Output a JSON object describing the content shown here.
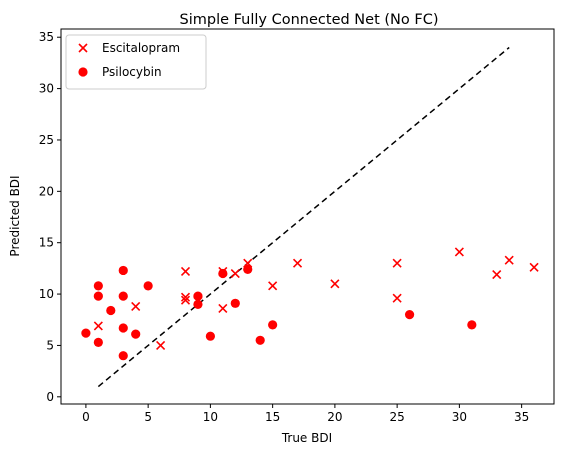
{
  "chart_data": {
    "type": "scatter",
    "title": "Simple Fully Connected Net (No FC)",
    "xlabel": "True BDI",
    "ylabel": "Predicted BDI",
    "xlim": [
      -2,
      37.6
    ],
    "ylim": [
      -0.7,
      35.8
    ],
    "xticks": [
      0,
      5,
      10,
      15,
      20,
      25,
      30,
      35
    ],
    "yticks": [
      0,
      5,
      10,
      15,
      20,
      25,
      30,
      35
    ],
    "grid": false,
    "legend_position": "upper-left",
    "reference_line": {
      "style": "dashed",
      "color": "#000000",
      "x": [
        1,
        34
      ],
      "y": [
        1,
        34
      ]
    },
    "series": [
      {
        "name": "Escitalopram",
        "marker": "x",
        "color": "#ff0000",
        "points": [
          [
            1,
            6.9
          ],
          [
            4,
            8.8
          ],
          [
            6,
            5.0
          ],
          [
            8,
            12.2
          ],
          [
            8,
            9.7
          ],
          [
            8,
            9.4
          ],
          [
            9,
            9.3
          ],
          [
            11,
            12.2
          ],
          [
            11,
            8.6
          ],
          [
            12,
            12.0
          ],
          [
            13,
            13.0
          ],
          [
            15,
            10.8
          ],
          [
            17,
            13.0
          ],
          [
            20,
            11.0
          ],
          [
            25,
            13.0
          ],
          [
            25,
            9.6
          ],
          [
            30,
            14.1
          ],
          [
            33,
            11.9
          ],
          [
            34,
            13.3
          ],
          [
            36,
            12.6
          ]
        ]
      },
      {
        "name": "Psilocybin",
        "marker": "o",
        "color": "#ff0000",
        "points": [
          [
            0,
            6.2
          ],
          [
            1,
            10.8
          ],
          [
            1,
            9.8
          ],
          [
            1,
            5.3
          ],
          [
            2,
            8.4
          ],
          [
            3,
            12.3
          ],
          [
            3,
            9.8
          ],
          [
            3,
            6.7
          ],
          [
            3,
            4.0
          ],
          [
            4,
            6.1
          ],
          [
            5,
            10.8
          ],
          [
            9,
            9.8
          ],
          [
            9,
            9.0
          ],
          [
            10,
            5.9
          ],
          [
            11,
            12.0
          ],
          [
            12,
            9.1
          ],
          [
            13,
            12.4
          ],
          [
            14,
            5.5
          ],
          [
            15,
            7.0
          ],
          [
            26,
            8.0
          ],
          [
            31,
            7.0
          ]
        ]
      }
    ]
  }
}
